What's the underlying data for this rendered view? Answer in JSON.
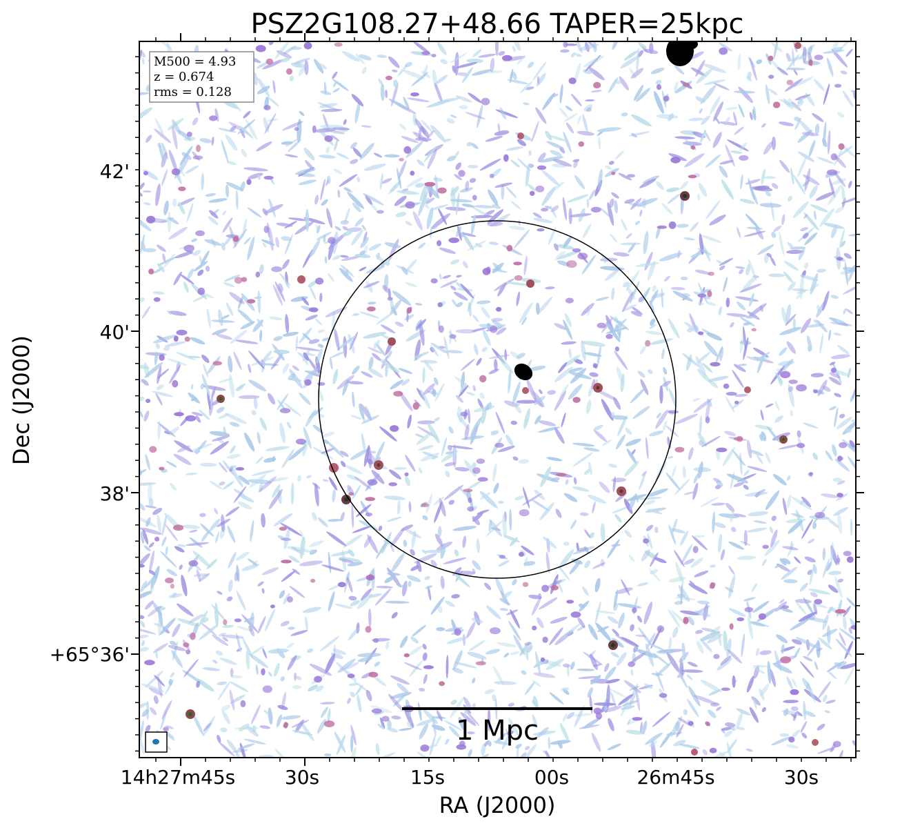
{
  "chart_data": {
    "type": "image",
    "title": "PSZ2G108.27+48.66 TAPER=25kpc",
    "xlabel": "RA (J2000)",
    "ylabel": "Dec (J2000)",
    "x_ticks": [
      "14h27m45s",
      "30s",
      "15s",
      "00s",
      "26m45s",
      "30s"
    ],
    "y_ticks": [
      "+65°36'",
      "38'",
      "40'",
      "42'"
    ],
    "info": {
      "m500": "M500 = 4.93",
      "z": "z = 0.674",
      "rms": "rms = 0.128"
    },
    "scale_bar_label": "1 Mpc",
    "colors": {
      "low_noise": "#a9c8e8",
      "mid_noise": "#9b8fe0",
      "high_noise": "#c06080",
      "source": "#000000",
      "source_halo": "#2f6b3a",
      "beam": "#1f77b4"
    },
    "sources": [
      {
        "name": "central",
        "ra": "14h27m02s",
        "dec": "+65°39.5'"
      },
      {
        "name": "north-edge",
        "ra": "14h26m45s",
        "dec": "+65°43.4'"
      },
      {
        "name": "ne-field",
        "ra": "14h26m44s",
        "dec": "+65°41.7'"
      }
    ]
  }
}
